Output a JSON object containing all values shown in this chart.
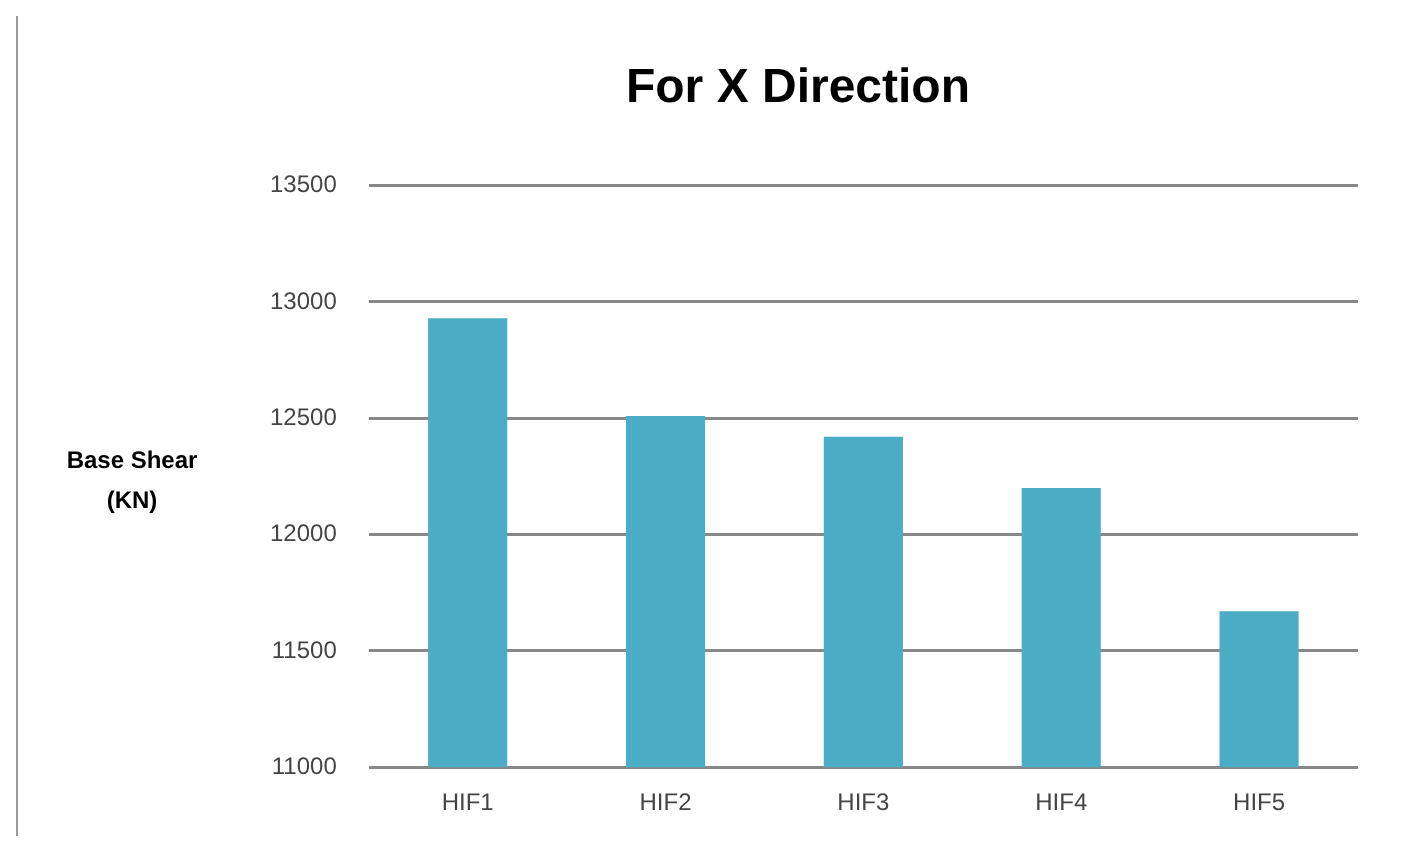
{
  "chart_data": {
    "type": "bar",
    "title": "For X Direction",
    "ylabel": "Base Shear (KN)",
    "categories": [
      "HIF1",
      "HIF2",
      "HIF3",
      "HIF4",
      "HIF5"
    ],
    "values": [
      12930,
      12510,
      12420,
      12200,
      11670
    ],
    "color": "#4bacc6",
    "ylim": [
      11000,
      13500
    ],
    "yticks": [
      11000,
      11500,
      12000,
      12500,
      13000,
      13500
    ],
    "grid": "y"
  }
}
